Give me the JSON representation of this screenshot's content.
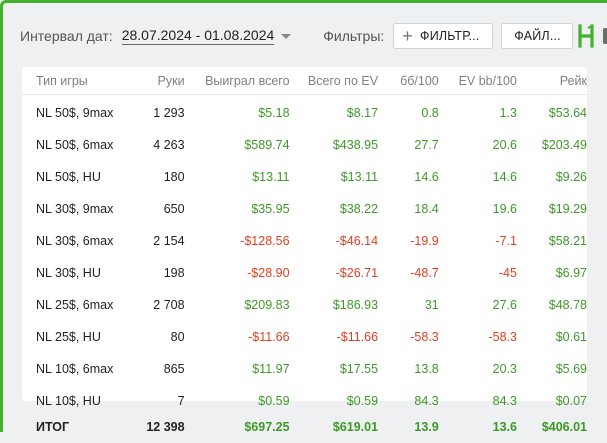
{
  "toolbar": {
    "date_interval_label": "Интервал дат:",
    "date_range": "28.07.2024 - 01.08.2024",
    "filters_label": "Фильтры:",
    "filter_button_label": "ФИЛЬТР...",
    "file_button_label": "ФАЙЛ...",
    "logo_icon": "logo-h-icon",
    "accent_color": "#43b02a"
  },
  "table": {
    "columns": [
      "Тип игры",
      "Руки",
      "Выиграл всего",
      "Всего по EV",
      "бб/100",
      "EV bb/100",
      "Рейк"
    ],
    "rows": [
      [
        "NL 50$, 9max",
        "1 293",
        "$5.18",
        "$8.17",
        "0.8",
        "1.3",
        "$53.64"
      ],
      [
        "NL 50$, 6max",
        "4 263",
        "$589.74",
        "$438.95",
        "27.7",
        "20.6",
        "$203.49"
      ],
      [
        "NL 50$, HU",
        "180",
        "$13.11",
        "$13.11",
        "14.6",
        "14.6",
        "$9.26"
      ],
      [
        "NL 30$, 9max",
        "650",
        "$35.95",
        "$38.22",
        "18.4",
        "19.6",
        "$19.29"
      ],
      [
        "NL 30$, 6max",
        "2 154",
        "-$128.56",
        "-$46.14",
        "-19.9",
        "-7.1",
        "$58.21"
      ],
      [
        "NL 30$, HU",
        "198",
        "-$28.90",
        "-$26.71",
        "-48.7",
        "-45",
        "$6.97"
      ],
      [
        "NL 25$, 6max",
        "2 708",
        "$209.83",
        "$186.93",
        "31",
        "27.6",
        "$48.78"
      ],
      [
        "NL 25$, HU",
        "80",
        "-$11.66",
        "-$11.66",
        "-58.3",
        "-58.3",
        "$0.61"
      ],
      [
        "NL 10$, 6max",
        "865",
        "$11.97",
        "$17.55",
        "13.8",
        "20.3",
        "$5.69"
      ],
      [
        "NL 10$, HU",
        "7",
        "$0.59",
        "$0.59",
        "84.3",
        "84.3",
        "$0.07"
      ]
    ],
    "total": [
      "ИТОГ",
      "12 398",
      "$697.25",
      "$619.01",
      "13.9",
      "13.6",
      "$406.01"
    ],
    "positive_color": "#3d9a27",
    "negative_color": "#e0401f"
  }
}
